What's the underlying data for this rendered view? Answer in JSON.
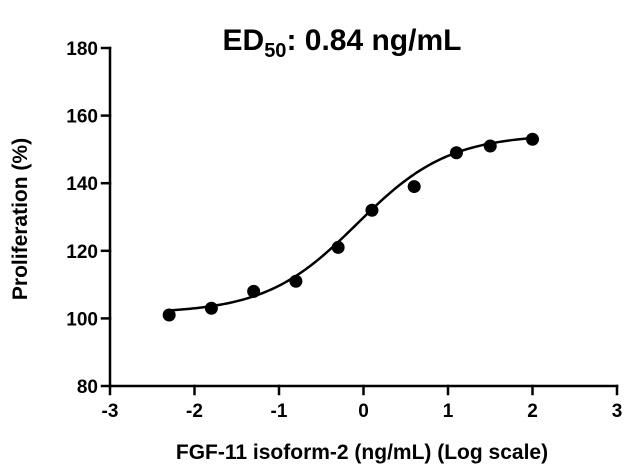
{
  "chart_data": {
    "type": "scatter",
    "title": {
      "main": "ED",
      "subscript": "50",
      "rest": ": 0.84 ng/mL"
    },
    "xlabel": "FGF-11 isoform-2 (ng/mL) (Log scale)",
    "ylabel": "Proliferation (%)",
    "xlim": [
      -3,
      3
    ],
    "ylim": [
      80,
      180
    ],
    "x_ticks": [
      "-3",
      "-2",
      "-1",
      "0",
      "1",
      "2",
      "3"
    ],
    "y_ticks": [
      "80",
      "100",
      "120",
      "140",
      "160",
      "180"
    ],
    "series": [
      {
        "x": [
          -2.3,
          -1.8,
          -1.3,
          -0.8,
          -0.3,
          0.1,
          0.6,
          1.1,
          1.5,
          2.0
        ],
        "y": [
          101,
          103,
          108,
          111,
          121,
          132,
          139,
          149,
          151,
          153
        ],
        "marker": "circle",
        "color": "#000000"
      }
    ],
    "fit_curve": {
      "type": "sigmoidal",
      "bottom": 101.5,
      "top": 154.5,
      "logEC50": -0.0757,
      "hill_slope": 0.8,
      "x_range": [
        -2.3,
        2.0
      ],
      "color": "#000000"
    },
    "grid": false,
    "legend": "none"
  }
}
